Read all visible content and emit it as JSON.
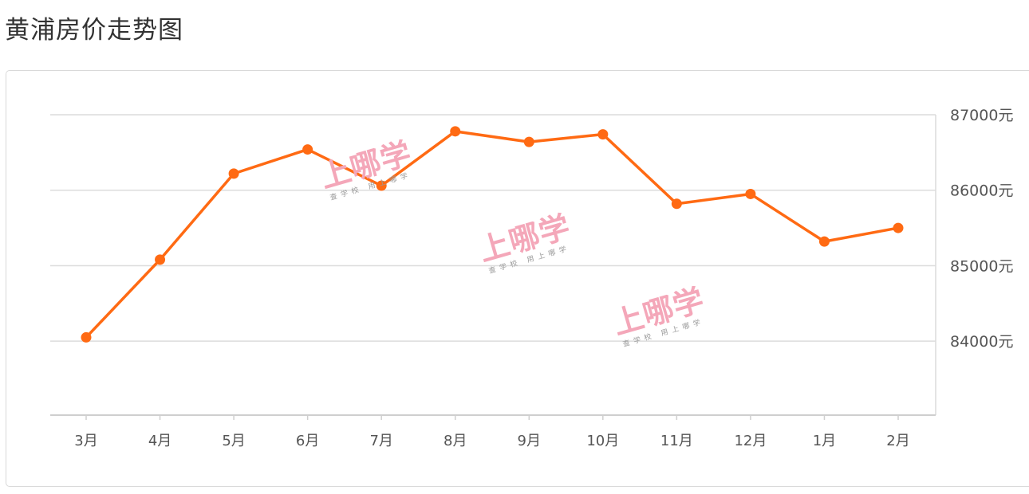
{
  "page": {
    "title": "黄浦房价走势图"
  },
  "watermark": {
    "logo": "上哪学",
    "sub": "查学校 用上哪学"
  },
  "colors": {
    "line": "#ff6a13",
    "grid": "#dcdcdc",
    "axis_text": "#555555"
  },
  "chart_data": {
    "type": "line",
    "title": "",
    "xlabel": "",
    "ylabel": "",
    "categories": [
      "3月",
      "4月",
      "5月",
      "6月",
      "7月",
      "8月",
      "9月",
      "10月",
      "11月",
      "12月",
      "1月",
      "2月"
    ],
    "series": [
      {
        "values": [
          84050,
          85080,
          86220,
          86540,
          86060,
          86780,
          86640,
          86740,
          85820,
          85950,
          85320,
          85500
        ]
      }
    ],
    "y_ticks": [
      84000,
      85000,
      86000,
      87000
    ],
    "y_tick_labels": [
      "84000元",
      "85000元",
      "86000元",
      "87000元"
    ],
    "ylim": [
      83020,
      87000
    ],
    "y_axis_position": "right",
    "grid": true,
    "legend": "none"
  }
}
